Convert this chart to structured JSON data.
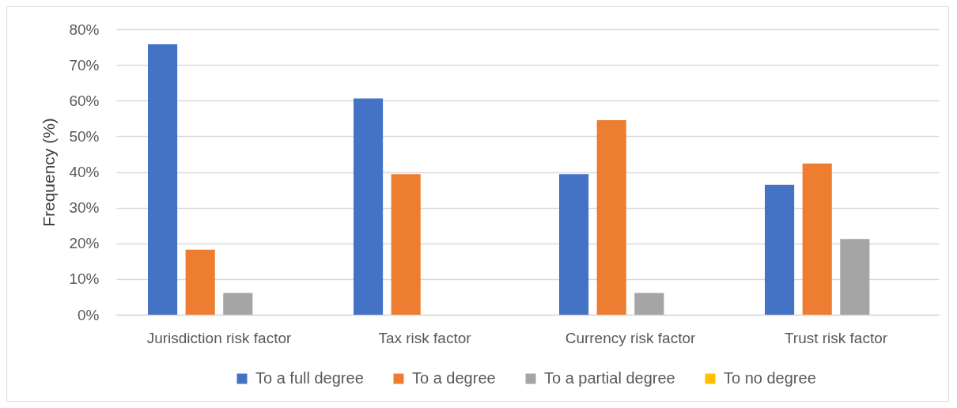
{
  "chart_data": {
    "type": "bar",
    "ylabel": "Frequency (%)",
    "categories": [
      "Jurisdiction risk factor",
      "Tax risk factor",
      "Currency risk factor",
      "Trust risk factor"
    ],
    "series": [
      {
        "name": "To a full degree",
        "color": "#4472c4",
        "values": [
          75.8,
          60.6,
          39.4,
          36.4
        ]
      },
      {
        "name": "To a degree",
        "color": "#ed7d31",
        "values": [
          18.2,
          39.4,
          54.5,
          42.4
        ]
      },
      {
        "name": "To a partial degree",
        "color": "#a5a5a5",
        "values": [
          6.1,
          0,
          6.1,
          21.2
        ]
      },
      {
        "name": "To  no degree",
        "color": "#ffc000",
        "values": [
          0,
          0,
          0,
          0
        ]
      }
    ],
    "ylim": [
      0,
      80
    ],
    "yticks": [
      {
        "value": 0,
        "label": "0%"
      },
      {
        "value": 10,
        "label": "10%"
      },
      {
        "value": 20,
        "label": "20%"
      },
      {
        "value": 30,
        "label": "30%"
      },
      {
        "value": 40,
        "label": "40%"
      },
      {
        "value": 50,
        "label": "50%"
      },
      {
        "value": 60,
        "label": "60%"
      },
      {
        "value": 70,
        "label": "70%"
      },
      {
        "value": 80,
        "label": "80%"
      }
    ],
    "grid": "y",
    "legend": "bottom"
  }
}
